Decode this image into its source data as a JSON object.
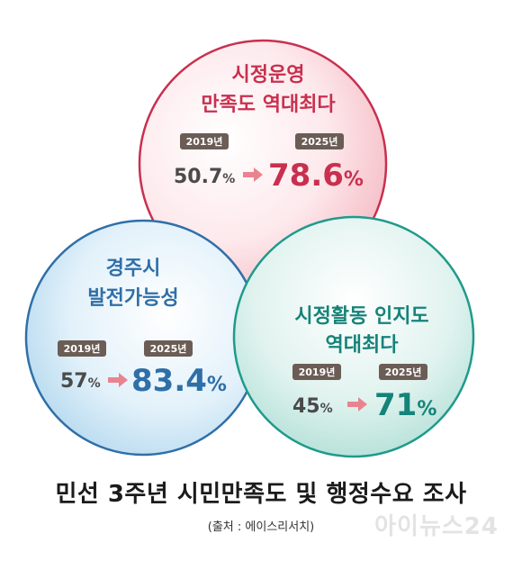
{
  "circles": [
    {
      "title_lines": [
        "시정운영",
        "만족도 역대최다"
      ],
      "year_from": "2019년",
      "value_from": "50.7",
      "year_to": "2025년",
      "value_to": "78.6",
      "unit": "%",
      "color": "#c8304f"
    },
    {
      "title_lines": [
        "경주시",
        "발전가능성"
      ],
      "year_from": "2019년",
      "value_from": "57",
      "year_to": "2025년",
      "value_to": "83.4",
      "unit": "%",
      "color": "#2f6fa8"
    },
    {
      "title_lines": [
        "시정활동 인지도",
        "역대최다"
      ],
      "year_from": "2019년",
      "value_from": "45",
      "year_to": "2025년",
      "value_to": "71",
      "unit": "%",
      "color": "#158379"
    }
  ],
  "caption": "민선 3주년 시민만족도 및 행정수요 조사",
  "source": "(출처 : 에이스리서치)",
  "watermark": "아이뉴스24"
}
